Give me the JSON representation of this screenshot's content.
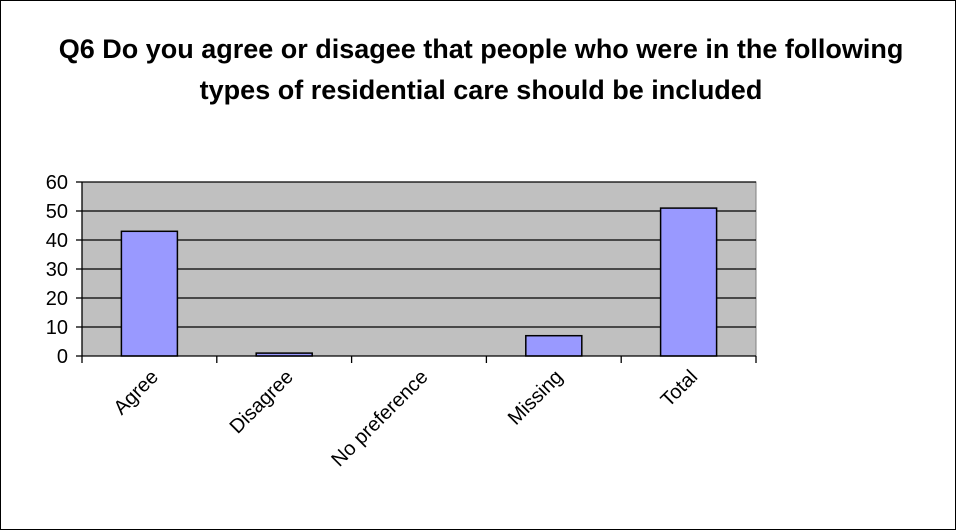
{
  "chart_data": {
    "type": "bar",
    "title": "Q6 Do you agree or disagee that people who were in the following types of residential care should be included",
    "categories": [
      "Agree",
      "Disagree",
      "No preference",
      "Missing",
      "Total"
    ],
    "values": [
      43,
      1,
      0,
      7,
      51
    ],
    "xlabel": "",
    "ylabel": "",
    "ylim": [
      0,
      60
    ],
    "yticks": [
      0,
      10,
      20,
      30,
      40,
      50,
      60
    ],
    "grid": true,
    "legend": "none",
    "colors": {
      "bar_fill": "#9999ff",
      "bar_stroke": "#000000",
      "plot_background": "#c0c0c0",
      "gridline": "#000000"
    }
  }
}
